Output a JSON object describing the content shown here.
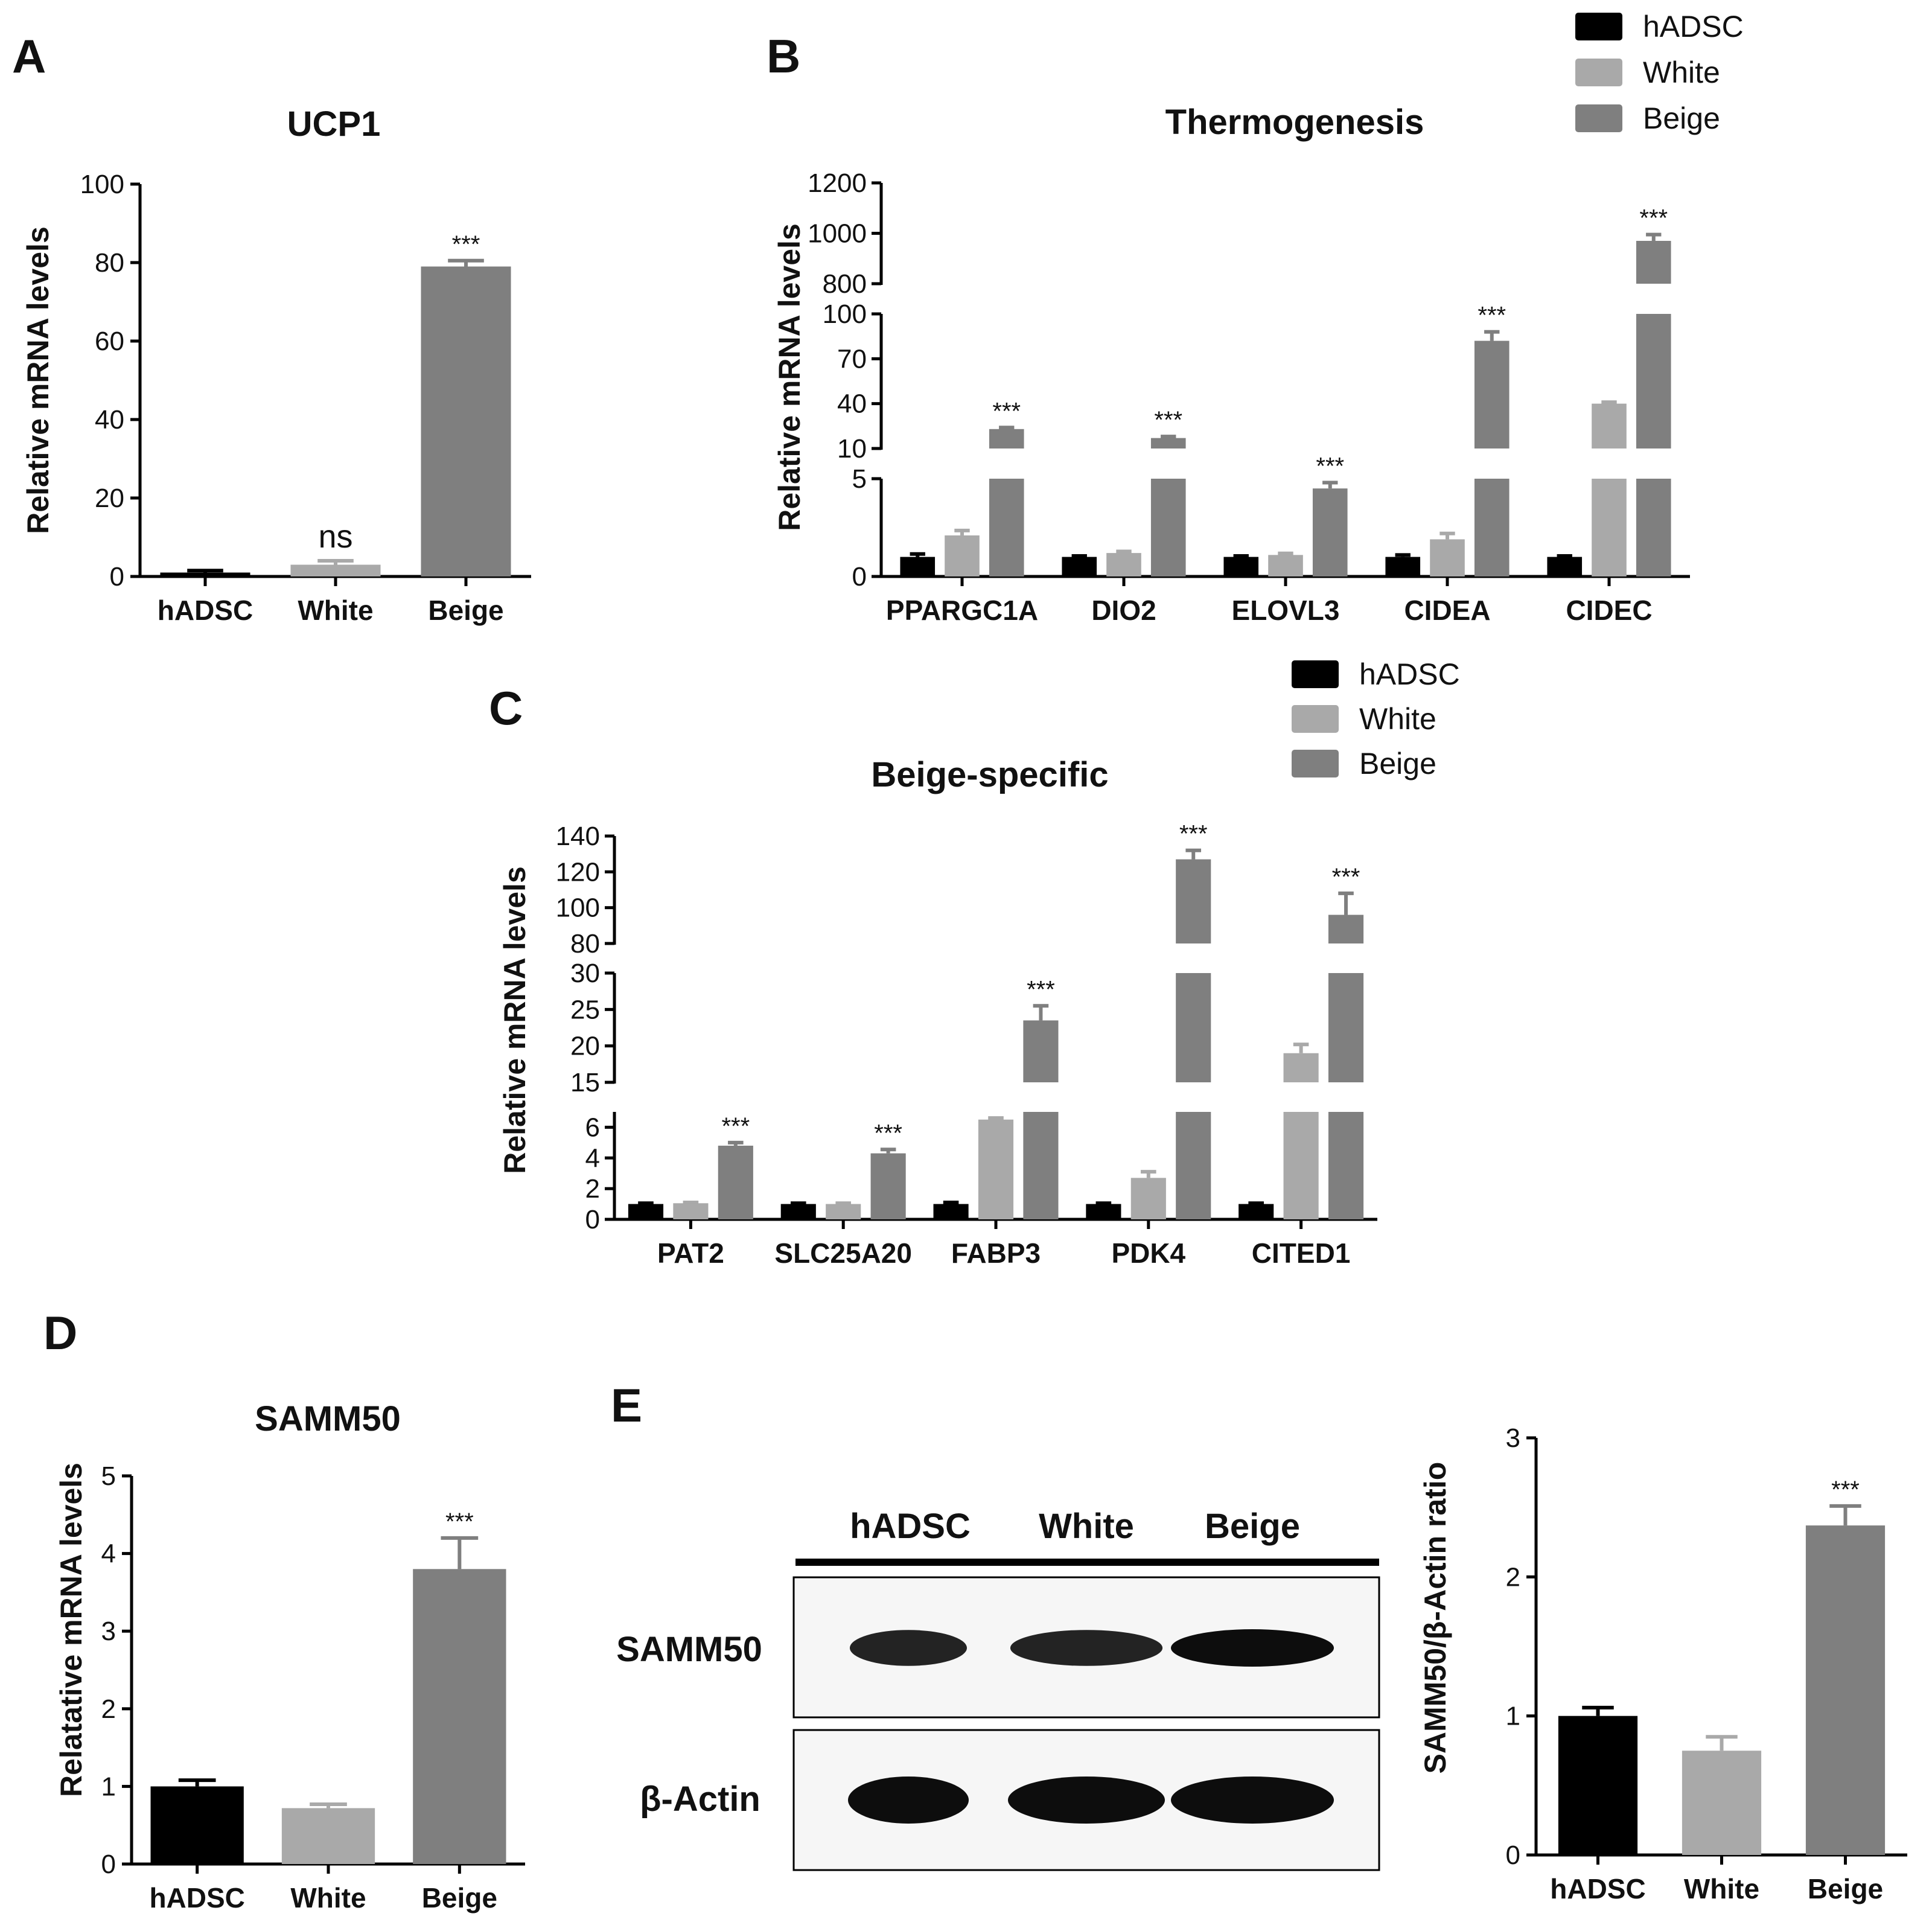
{
  "colors": {
    "hADSC": "#000000",
    "White": "#a9a9a9",
    "Beige": "#7f7f7f"
  },
  "chart_data": [
    {
      "panel": "A",
      "type": "bar",
      "title": "UCP1",
      "ylabel": "Relative mRNA levels",
      "categories": [
        "hADSC",
        "White",
        "Beige"
      ],
      "values": [
        1,
        3,
        79
      ],
      "errors": [
        0.5,
        1,
        1.5
      ],
      "significance": [
        "",
        "ns",
        "***"
      ],
      "ylim": [
        0,
        100
      ],
      "yticks": [
        0,
        20,
        40,
        60,
        80,
        100
      ]
    },
    {
      "panel": "B",
      "type": "bar",
      "title": "Thermogenesis",
      "ylabel": "Relative mRNA levels",
      "categories": [
        "PPARGC1A",
        "DIO2",
        "ELOVL3",
        "CIDEA",
        "CIDEC"
      ],
      "series": [
        {
          "name": "hADSC",
          "values": [
            1,
            1,
            1,
            1,
            1
          ],
          "errors": [
            0.15,
            0.05,
            0.05,
            0.1,
            0.05
          ]
        },
        {
          "name": "White",
          "values": [
            2.1,
            1.2,
            1.1,
            1.9,
            40
          ],
          "errors": [
            0.25,
            0.08,
            0.08,
            0.3,
            1
          ]
        },
        {
          "name": "Beige",
          "values": [
            23,
            17,
            4.5,
            82,
            970
          ],
          "errors": [
            1,
            1,
            0.3,
            6,
            25
          ]
        }
      ],
      "significance": [
        "***",
        "***",
        "***",
        "***",
        "***"
      ],
      "axis_break_segments": [
        [
          0,
          5
        ],
        [
          10,
          100
        ],
        [
          800,
          1200
        ]
      ],
      "yticks": [
        0,
        5,
        10,
        40,
        70,
        100,
        800,
        1000,
        1200
      ],
      "legend": [
        "hADSC",
        "White",
        "Beige"
      ],
      "legend_position": "top-right"
    },
    {
      "panel": "C",
      "type": "bar",
      "title": "Beige-specific",
      "ylabel": "Relative mRNA levels",
      "categories": [
        "PAT2",
        "SLC25A20",
        "FABP3",
        "PDK4",
        "CITED1"
      ],
      "series": [
        {
          "name": "hADSC",
          "values": [
            1,
            1,
            1,
            1,
            1
          ],
          "errors": [
            0.05,
            0.05,
            0.1,
            0.05,
            0.05
          ]
        },
        {
          "name": "White",
          "values": [
            1.05,
            1,
            6.5,
            2.7,
            19
          ],
          "errors": [
            0.05,
            0.05,
            0.1,
            0.4,
            1.2
          ]
        },
        {
          "name": "Beige",
          "values": [
            4.8,
            4.3,
            23.5,
            127,
            96
          ],
          "errors": [
            0.2,
            0.25,
            2,
            5,
            12
          ]
        }
      ],
      "significance": [
        "***",
        "***",
        "***",
        "***",
        "***"
      ],
      "axis_break_segments": [
        [
          0,
          7
        ],
        [
          15,
          30
        ],
        [
          80,
          140
        ]
      ],
      "yticks": [
        0,
        2,
        4,
        6,
        15,
        20,
        25,
        30,
        80,
        100,
        120,
        140
      ],
      "legend": [
        "hADSC",
        "White",
        "Beige"
      ],
      "legend_position": "top-right"
    },
    {
      "panel": "D",
      "type": "bar",
      "title": "SAMM50",
      "ylabel": "Relatative mRNA levels",
      "categories": [
        "hADSC",
        "White",
        "Beige"
      ],
      "values": [
        1.0,
        0.72,
        3.8
      ],
      "errors": [
        0.08,
        0.05,
        0.4
      ],
      "significance": [
        "",
        "",
        "***"
      ],
      "ylim": [
        0,
        5
      ],
      "yticks": [
        0,
        1,
        2,
        3,
        4,
        5
      ]
    },
    {
      "panel": "E",
      "type": "bar",
      "title": "",
      "ylabel": "SAMM50/β-Actin ratio",
      "categories": [
        "hADSC",
        "White",
        "Beige"
      ],
      "values": [
        1.0,
        0.75,
        2.37
      ],
      "errors": [
        0.06,
        0.1,
        0.14
      ],
      "significance": [
        "",
        "",
        "***"
      ],
      "ylim": [
        0,
        3
      ],
      "yticks": [
        0,
        1,
        2,
        3
      ]
    }
  ],
  "panel_letters": {
    "A": "A",
    "B": "B",
    "C": "C",
    "D": "D",
    "E": "E"
  },
  "blot": {
    "lanes": [
      "hADSC",
      "White",
      "Beige"
    ],
    "rows": [
      "SAMM50",
      "β-Actin"
    ],
    "band_intensity": {
      "SAMM50": [
        0.8,
        0.8,
        1.0
      ],
      "β-Actin": [
        1.0,
        1.0,
        1.0
      ]
    }
  }
}
